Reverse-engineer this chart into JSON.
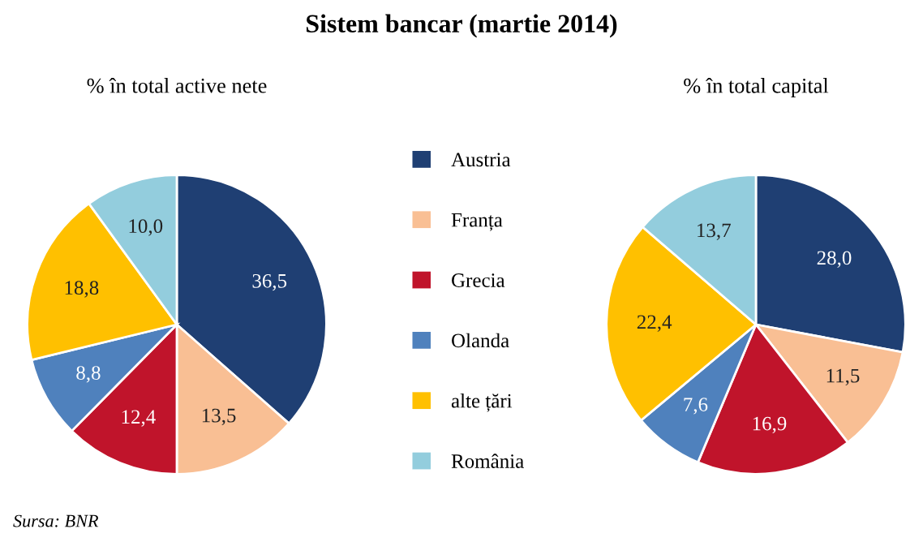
{
  "chart_data": [
    {
      "type": "pie",
      "title": "Sistem bancar (martie 2014)",
      "subtitle": "% în total active nete",
      "categories": [
        "Austria",
        "Franța",
        "Grecia",
        "Olanda",
        "alte țări",
        "România"
      ],
      "values": [
        36.5,
        13.5,
        12.4,
        8.8,
        18.8,
        10.0
      ],
      "value_labels": [
        "36,5",
        "13,5",
        "12,4",
        "8,8",
        "18,8",
        "10,0"
      ],
      "colors": [
        "#1f3f73",
        "#f9bf94",
        "#c0142b",
        "#4f81bd",
        "#ffc000",
        "#93cddd"
      ],
      "legend": "right",
      "annotations": [
        "Sursa: BNR"
      ]
    },
    {
      "type": "pie",
      "subtitle": "% în total capital",
      "categories": [
        null,
        null,
        null,
        null,
        null,
        null
      ],
      "values": [
        28.0,
        11.5,
        16.9,
        7.6,
        22.4,
        13.7
      ],
      "value_labels": [
        "28,0",
        "11,5",
        "16,9",
        "7,6",
        "22,4",
        "13,7"
      ],
      "colors": [
        "#1f3f73",
        "#f9bf94",
        "#c0142b",
        "#4f81bd",
        "#ffc000",
        "#93cddd"
      ],
      "legend": false
    }
  ]
}
